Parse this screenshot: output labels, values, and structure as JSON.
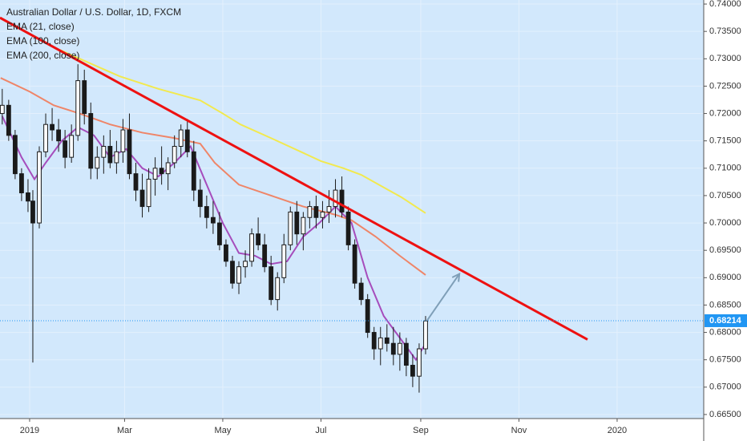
{
  "chart_data": {
    "type": "candlestick",
    "title": "Australian Dollar / U.S. Dollar, 1D, FXCM",
    "xlim": [
      -18.4,
      418.8
    ],
    "xticks": [
      {
        "value": 0,
        "label": "2019"
      },
      {
        "value": 59,
        "label": "Mar"
      },
      {
        "value": 120,
        "label": "May"
      },
      {
        "value": 181,
        "label": "Jul"
      },
      {
        "value": 243,
        "label": "Sep"
      },
      {
        "value": 304,
        "label": "Nov"
      },
      {
        "value": 365,
        "label": "2020"
      }
    ],
    "ylim": [
      0.66426,
      0.74074
    ],
    "yticks": [
      {
        "value": 0.74,
        "label": "0.74000"
      },
      {
        "value": 0.735,
        "label": "0.73500"
      },
      {
        "value": 0.73,
        "label": "0.73000"
      },
      {
        "value": 0.725,
        "label": "0.72500"
      },
      {
        "value": 0.72,
        "label": "0.72000"
      },
      {
        "value": 0.715,
        "label": "0.71500"
      },
      {
        "value": 0.71,
        "label": "0.71000"
      },
      {
        "value": 0.705,
        "label": "0.70500"
      },
      {
        "value": 0.7,
        "label": "0.70000"
      },
      {
        "value": 0.695,
        "label": "0.69500"
      },
      {
        "value": 0.69,
        "label": "0.69000"
      },
      {
        "value": 0.685,
        "label": "0.68500"
      },
      {
        "value": 0.68,
        "label": "0.68000"
      },
      {
        "value": 0.675,
        "label": "0.67500"
      },
      {
        "value": 0.67,
        "label": "0.67000"
      },
      {
        "value": 0.665,
        "label": "0.66500"
      }
    ],
    "grid": true,
    "last_price": {
      "value": 0.68214,
      "label": "0.68214",
      "color": "#2196f3"
    },
    "candles": {
      "up_color": "#ffffff",
      "down_color": "#1a1a1a",
      "x": [
        -17,
        -13,
        -9,
        -5,
        -1,
        2,
        6,
        10,
        14,
        18,
        22,
        26,
        30,
        34,
        38,
        42,
        46,
        50,
        54,
        58,
        62,
        66,
        70,
        74,
        78,
        82,
        86,
        90,
        94,
        98,
        102,
        106,
        110,
        114,
        118,
        122,
        126,
        130,
        134,
        138,
        142,
        146,
        150,
        154,
        158,
        162,
        166,
        170,
        174,
        178,
        182,
        186,
        190,
        194,
        198,
        202,
        206,
        210,
        214,
        218,
        222,
        226,
        230,
        234,
        238,
        242,
        246
      ],
      "open": [
        0.72,
        0.7215,
        0.716,
        0.709,
        0.7055,
        0.704,
        0.7,
        0.713,
        0.718,
        0.717,
        0.715,
        0.712,
        0.716,
        0.726,
        0.72,
        0.71,
        0.712,
        0.714,
        0.711,
        0.713,
        0.717,
        0.709,
        0.706,
        0.703,
        0.708,
        0.71,
        0.709,
        0.711,
        0.714,
        0.717,
        0.713,
        0.706,
        0.703,
        0.701,
        0.7,
        0.696,
        0.693,
        0.689,
        0.692,
        0.693,
        0.698,
        0.696,
        0.692,
        0.686,
        0.69,
        0.696,
        0.702,
        0.698,
        0.701,
        0.703,
        0.701,
        0.702,
        0.703,
        0.706,
        0.702,
        0.696,
        0.689,
        0.686,
        0.68,
        0.677,
        0.679,
        0.678,
        0.676,
        0.678,
        0.674,
        0.672,
        0.677
      ],
      "high": [
        0.7245,
        0.7225,
        0.717,
        0.71,
        0.708,
        0.706,
        0.714,
        0.72,
        0.721,
        0.719,
        0.717,
        0.718,
        0.729,
        0.728,
        0.722,
        0.714,
        0.716,
        0.717,
        0.715,
        0.719,
        0.72,
        0.711,
        0.709,
        0.71,
        0.712,
        0.714,
        0.712,
        0.716,
        0.718,
        0.719,
        0.715,
        0.708,
        0.705,
        0.704,
        0.702,
        0.697,
        0.694,
        0.693,
        0.695,
        0.699,
        0.701,
        0.698,
        0.694,
        0.691,
        0.698,
        0.703,
        0.704,
        0.702,
        0.704,
        0.705,
        0.704,
        0.706,
        0.708,
        0.7085,
        0.703,
        0.697,
        0.69,
        0.687,
        0.681,
        0.681,
        0.6815,
        0.681,
        0.68,
        0.679,
        0.676,
        0.678,
        0.683
      ],
      "low": [
        0.718,
        0.715,
        0.708,
        0.704,
        0.702,
        0.6745,
        0.699,
        0.712,
        0.715,
        0.713,
        0.71,
        0.711,
        0.715,
        0.718,
        0.708,
        0.708,
        0.709,
        0.71,
        0.709,
        0.711,
        0.708,
        0.704,
        0.701,
        0.702,
        0.705,
        0.707,
        0.706,
        0.71,
        0.712,
        0.712,
        0.704,
        0.701,
        0.699,
        0.698,
        0.695,
        0.692,
        0.688,
        0.687,
        0.69,
        0.692,
        0.695,
        0.691,
        0.685,
        0.684,
        0.689,
        0.695,
        0.696,
        0.695,
        0.699,
        0.699,
        0.699,
        0.7,
        0.701,
        0.701,
        0.695,
        0.688,
        0.685,
        0.679,
        0.675,
        0.674,
        0.6765,
        0.674,
        0.673,
        0.672,
        0.67,
        0.669,
        0.676
      ],
      "close": [
        0.7215,
        0.716,
        0.709,
        0.7055,
        0.704,
        0.7,
        0.713,
        0.718,
        0.717,
        0.715,
        0.712,
        0.716,
        0.726,
        0.72,
        0.71,
        0.712,
        0.714,
        0.711,
        0.713,
        0.717,
        0.709,
        0.706,
        0.703,
        0.708,
        0.71,
        0.709,
        0.711,
        0.714,
        0.717,
        0.713,
        0.706,
        0.703,
        0.701,
        0.7,
        0.696,
        0.693,
        0.689,
        0.692,
        0.693,
        0.698,
        0.696,
        0.692,
        0.686,
        0.69,
        0.696,
        0.702,
        0.698,
        0.701,
        0.703,
        0.701,
        0.702,
        0.703,
        0.706,
        0.702,
        0.696,
        0.689,
        0.686,
        0.68,
        0.677,
        0.679,
        0.678,
        0.676,
        0.678,
        0.674,
        0.672,
        0.677,
        0.6821
      ]
    },
    "series": [
      {
        "name": "EMA (21, close)",
        "color": "#a64dbc",
        "x": [
          -17,
          -5,
          3,
          10,
          20,
          30,
          40,
          50,
          60,
          70,
          80,
          90,
          100,
          110,
          120,
          130,
          140,
          150,
          160,
          170,
          180,
          190,
          200,
          210,
          220,
          230,
          240,
          246
        ],
        "values": [
          0.7195,
          0.712,
          0.708,
          0.711,
          0.715,
          0.7175,
          0.716,
          0.712,
          0.7135,
          0.71,
          0.7085,
          0.711,
          0.714,
          0.707,
          0.7,
          0.6945,
          0.694,
          0.6925,
          0.693,
          0.6975,
          0.7,
          0.703,
          0.7,
          0.69,
          0.683,
          0.679,
          0.675,
          0.678
        ]
      },
      {
        "name": "EMA (100, close)",
        "color": "#ef8568",
        "x": [
          -18,
          0,
          15,
          31,
          50,
          70,
          90,
          106,
          115,
          130,
          150,
          170,
          190,
          200,
          215,
          230,
          246
        ],
        "values": [
          0.7265,
          0.724,
          0.7215,
          0.72,
          0.718,
          0.7165,
          0.7155,
          0.7145,
          0.711,
          0.707,
          0.705,
          0.703,
          0.7015,
          0.7005,
          0.6975,
          0.694,
          0.6905
        ]
      },
      {
        "name": "EMA (200, close)",
        "color": "#f2e94e",
        "x": [
          19,
          35,
          56,
          80,
          106,
          120,
          131,
          150,
          170,
          181,
          195,
          206,
          220,
          231,
          246
        ],
        "values": [
          0.7316,
          0.7295,
          0.7268,
          0.7245,
          0.7224,
          0.72,
          0.718,
          0.7155,
          0.7128,
          0.7113,
          0.71,
          0.7088,
          0.7065,
          0.7047,
          0.7018
        ]
      }
    ],
    "drawings": [
      {
        "kind": "trendline",
        "color": "#ee1111",
        "x": [
          -18.4,
          346.6
        ],
        "y": [
          0.7375,
          0.6787
        ]
      },
      {
        "kind": "arrow",
        "color": "#7f9fb8",
        "x": [
          247,
          267
        ],
        "y": [
          0.6822,
          0.6907
        ]
      }
    ]
  }
}
